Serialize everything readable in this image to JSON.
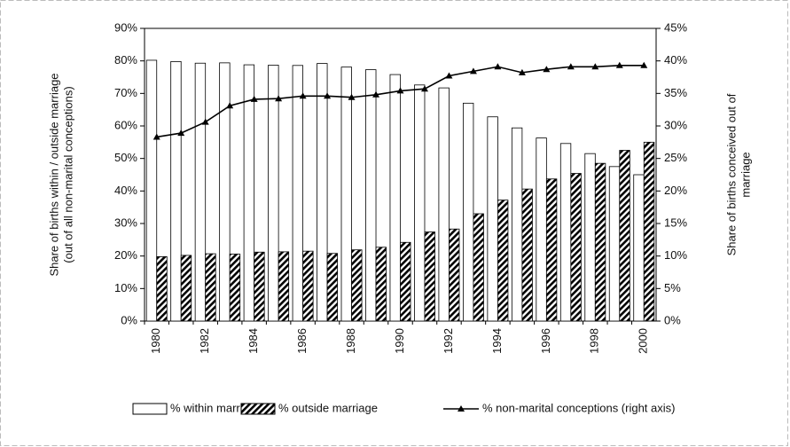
{
  "chart_data": {
    "type": "bar-line",
    "categories": [
      "1980",
      null,
      "1982",
      null,
      "1984",
      null,
      "1986",
      null,
      "1988",
      null,
      "1990",
      null,
      "1992",
      null,
      "1994",
      null,
      "1996",
      null,
      "1998",
      null,
      "2000"
    ],
    "series": [
      {
        "name": "% within marriage",
        "type": "bar",
        "color": "#ffffff",
        "pattern": "none",
        "values": [
          80.2,
          79.8,
          79.3,
          79.4,
          78.8,
          78.7,
          78.6,
          79.2,
          78.1,
          77.3,
          75.8,
          72.6,
          71.7,
          67,
          62.8,
          59.4,
          56.3,
          54.6,
          51.5,
          47.5,
          45
        ]
      },
      {
        "name": "% outside marriage",
        "type": "bar",
        "color": "#000000",
        "pattern": "hatch",
        "values": [
          19.8,
          20.2,
          20.7,
          20.6,
          21.2,
          21.3,
          21.5,
          20.8,
          21.9,
          22.7,
          24.2,
          27.4,
          28.3,
          33,
          37.2,
          40.6,
          43.7,
          45.4,
          48.5,
          52.5,
          55
        ]
      },
      {
        "name": "% non-marital conceptions (right axis)",
        "type": "line",
        "axis": "y2",
        "color": "#000000",
        "marker": "triangle",
        "values": [
          28.3,
          28.9,
          30.6,
          33.1,
          34.1,
          34.2,
          34.6,
          34.6,
          34.4,
          34.8,
          35.4,
          35.7,
          37.7,
          38.4,
          39.1,
          38.2,
          38.7,
          39.1,
          39.1,
          39.3,
          39.3
        ]
      }
    ],
    "ylabel": [
      "Share of births within / outside marriage",
      "(out of all non-marital conceptions)"
    ],
    "y2label": [
      "Share of births conceived out of",
      "marriage"
    ],
    "ylim": [
      0,
      90
    ],
    "yticks": [
      {
        "value": 0,
        "label": "0%"
      },
      {
        "value": 10,
        "label": "10%"
      },
      {
        "value": 20,
        "label": "20%"
      },
      {
        "value": 30,
        "label": "30%"
      },
      {
        "value": 40,
        "label": "40%"
      },
      {
        "value": 50,
        "label": "50%"
      },
      {
        "value": 60,
        "label": "60%"
      },
      {
        "value": 70,
        "label": "70%"
      },
      {
        "value": 80,
        "label": "80%"
      },
      {
        "value": 90,
        "label": "90%"
      }
    ],
    "y2lim": [
      0,
      45
    ],
    "y2ticks": [
      {
        "value": 0,
        "label": "0%"
      },
      {
        "value": 5,
        "label": "5%"
      },
      {
        "value": 10,
        "label": "10%"
      },
      {
        "value": 15,
        "label": "15%"
      },
      {
        "value": 20,
        "label": "20%"
      },
      {
        "value": 25,
        "label": "25%"
      },
      {
        "value": 30,
        "label": "30%"
      },
      {
        "value": 35,
        "label": "35%"
      },
      {
        "value": 40,
        "label": "40%"
      },
      {
        "value": 45,
        "label": "45%"
      }
    ],
    "grid": false,
    "legend": "bottom"
  }
}
